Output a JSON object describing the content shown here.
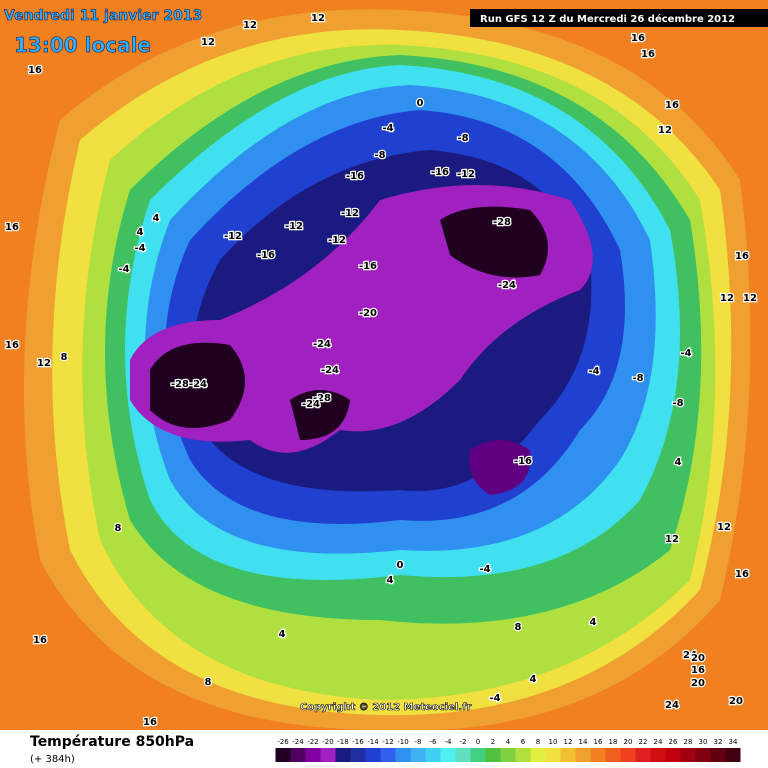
{
  "header": {
    "date": "Vendredi 11 janvier 2013",
    "time": "13:00 locale",
    "run": "Run GFS 12 Z du Mercredi 26 décembre 2012"
  },
  "footer": {
    "title": "Température 850hPa",
    "lead": "(+ 384h)",
    "copyright": "Copyright © 2012 Meteociel.fr"
  },
  "contour_labels": [
    12,
    12,
    12,
    16,
    16,
    16,
    16,
    12,
    0,
    -4,
    -8,
    -8,
    -16,
    -16,
    -12,
    -28,
    -24,
    -12,
    -12,
    -12,
    -12,
    -16,
    -16,
    -20,
    -24,
    -24,
    -28,
    -24,
    -28,
    -24,
    -16,
    -4,
    -8,
    -8,
    -4,
    4,
    12,
    12,
    16,
    16,
    16,
    12,
    8,
    4,
    4,
    -4,
    -4,
    0,
    4,
    -4,
    8,
    12,
    12,
    16,
    4,
    16,
    8,
    4,
    -4,
    16,
    24,
    20,
    16,
    20,
    24,
    20,
    8,
    4
  ],
  "legend": {
    "labels": [
      -26,
      -24,
      -22,
      -20,
      -18,
      -16,
      -14,
      -12,
      -10,
      -8,
      -6,
      -4,
      -2,
      0,
      2,
      4,
      6,
      8,
      10,
      12,
      14,
      16,
      18,
      20,
      22,
      24,
      26,
      28,
      30,
      32,
      34
    ],
    "colors": [
      "#200020",
      "#500060",
      "#8000a0",
      "#a020c0",
      "#1a1a80",
      "#2030a0",
      "#2040d0",
      "#3060f0",
      "#3090f0",
      "#40b0f0",
      "#40d0f0",
      "#50f0f0",
      "#60e0c0",
      "#40d080",
      "#50c040",
      "#80d040",
      "#b0e040",
      "#e0f040",
      "#f0e040",
      "#f0c030",
      "#f0a030",
      "#f08020",
      "#f06020",
      "#f04020",
      "#e02020",
      "#d01010",
      "#c00010",
      "#a00010",
      "#800010",
      "#600010",
      "#400010"
    ]
  }
}
